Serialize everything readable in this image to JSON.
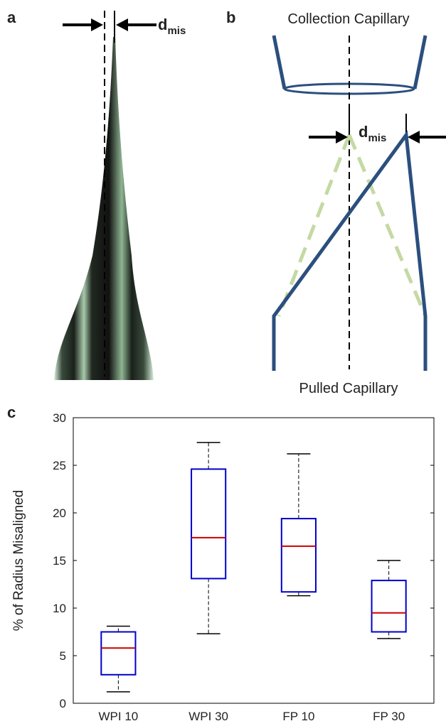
{
  "panels": {
    "a": {
      "label": "a",
      "marker": {
        "main": "d",
        "sub": "mis"
      }
    },
    "b": {
      "label": "b",
      "top_label": "Collection Capillary",
      "bottom_label": "Pulled Capillary",
      "marker": {
        "main": "d",
        "sub": "mis"
      }
    },
    "c": {
      "label": "c"
    }
  },
  "chart_data": {
    "type": "box",
    "ylabel": "% of Radius Misaligned",
    "categories": [
      "WPI 10",
      "WPI 30",
      "FP 10",
      "FP 30"
    ],
    "boxes": [
      {
        "min": 1.2,
        "q1": 3.0,
        "median": 5.8,
        "q3": 7.5,
        "max": 8.1
      },
      {
        "min": 7.3,
        "q1": 13.1,
        "median": 17.4,
        "q3": 24.6,
        "max": 27.4
      },
      {
        "min": 11.3,
        "q1": 11.7,
        "median": 16.5,
        "q3": 19.4,
        "max": 26.2
      },
      {
        "min": 6.8,
        "q1": 7.5,
        "median": 9.5,
        "q3": 12.9,
        "max": 15.0
      }
    ],
    "box_color": "#0000cc",
    "median_color": "#cc0000",
    "whisker_color": "#000000",
    "ylim": [
      0,
      30
    ],
    "yticks": [
      0,
      5,
      10,
      15,
      20,
      25,
      30
    ],
    "grid": false
  }
}
